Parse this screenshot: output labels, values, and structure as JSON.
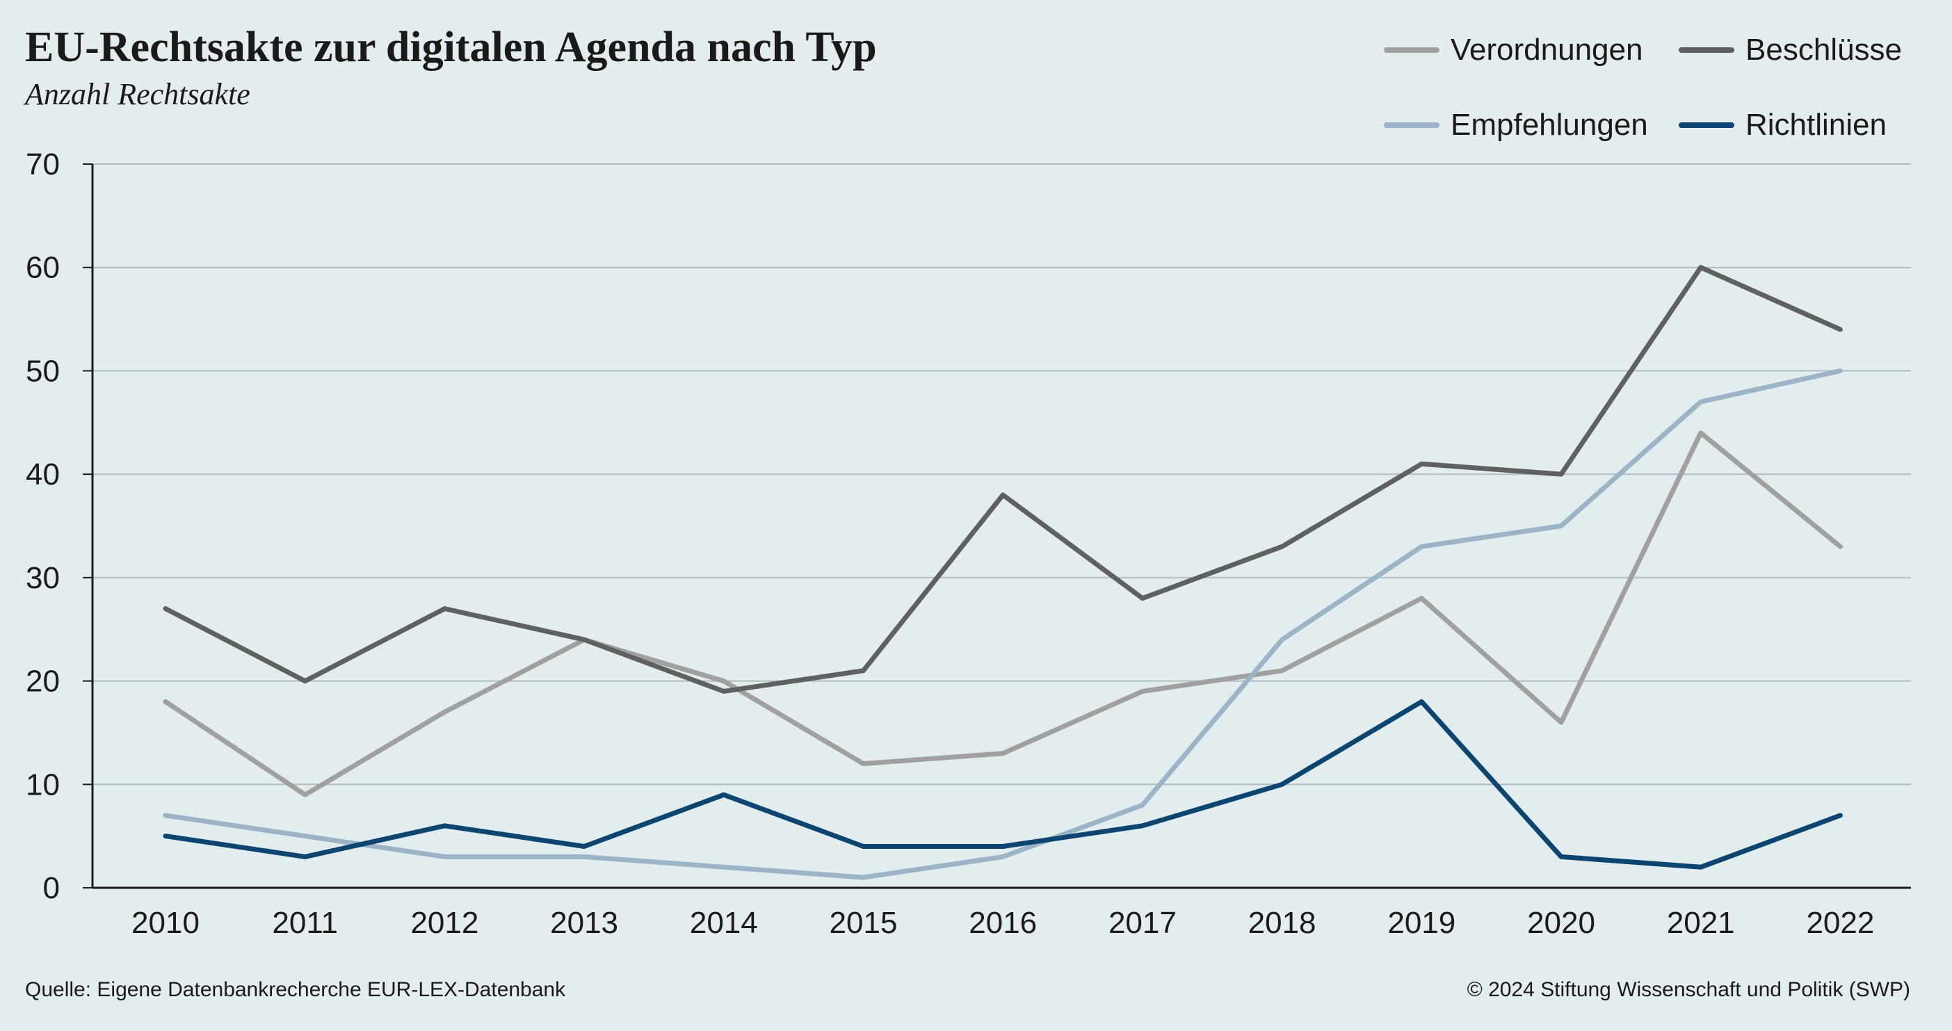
{
  "header": {
    "title": "EU-Rechtsakte zur digitalen Agenda nach Typ",
    "subtitle": "Anzahl Rechtsakte"
  },
  "legend": [
    {
      "label": "Verordnungen",
      "color": "#a0a0a0"
    },
    {
      "label": "Beschlüsse",
      "color": "#5f6062"
    },
    {
      "label": "Empfehlungen",
      "color": "#9bb4c8"
    },
    {
      "label": "Richtlinien",
      "color": "#0c456f"
    }
  ],
  "footer": {
    "source": "Quelle: Eigene Datenbankrecherche EUR-LEX-Datenbank",
    "copyright": "© 2024 Stiftung Wissenschaft und Politik (SWP)"
  },
  "chart_data": {
    "type": "line",
    "title": "EU-Rechtsakte zur digitalen Agenda nach Typ",
    "subtitle": "Anzahl Rechtsakte",
    "xlabel": "",
    "ylabel": "",
    "x": [
      "2010",
      "2011",
      "2012",
      "2013",
      "2014",
      "2015",
      "2016",
      "2017",
      "2018",
      "2019",
      "2020",
      "2021",
      "2022"
    ],
    "ylim": [
      0,
      70
    ],
    "yticks": [
      "0",
      "10",
      "20",
      "30",
      "40",
      "50",
      "60",
      "70"
    ],
    "grid": true,
    "legend_position": "top-right",
    "series": [
      {
        "name": "Verordnungen",
        "color": "#a0a0a0",
        "values": [
          18,
          9,
          17,
          24,
          20,
          12,
          13,
          19,
          21,
          28,
          16,
          44,
          33
        ]
      },
      {
        "name": "Beschlüsse",
        "color": "#5f6062",
        "values": [
          27,
          20,
          27,
          24,
          19,
          21,
          38,
          28,
          33,
          41,
          40,
          60,
          54
        ]
      },
      {
        "name": "Empfehlungen",
        "color": "#9bb4c8",
        "values": [
          7,
          5,
          3,
          3,
          2,
          1,
          3,
          8,
          24,
          33,
          35,
          47,
          50
        ]
      },
      {
        "name": "Richtlinien",
        "color": "#0c456f",
        "values": [
          5,
          3,
          6,
          4,
          9,
          4,
          4,
          6,
          10,
          18,
          3,
          2,
          7
        ]
      }
    ]
  }
}
